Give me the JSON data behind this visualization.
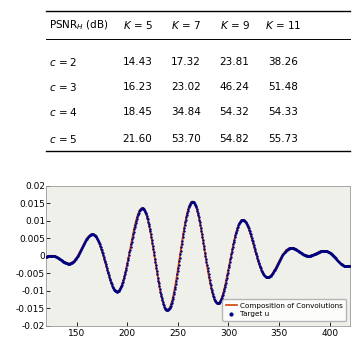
{
  "table_title": "PSNR$_{H}$ (dB)",
  "col_headers": [
    "K = 5",
    "K = 7",
    "K = 9",
    "K = 11"
  ],
  "row_headers": [
    "c = 2",
    "c = 3",
    "c = 4",
    "c = 5"
  ],
  "table_data": [
    [
      14.43,
      17.32,
      23.81,
      38.26
    ],
    [
      16.23,
      23.02,
      46.24,
      51.48
    ],
    [
      18.45,
      34.84,
      54.32,
      54.33
    ],
    [
      21.6,
      53.7,
      54.82,
      55.73
    ]
  ],
  "plot_xlim": [
    120,
    420
  ],
  "plot_ylim": [
    -0.02,
    0.02
  ],
  "plot_yticks": [
    -0.02,
    -0.015,
    -0.01,
    -0.005,
    0,
    0.005,
    0.01,
    0.015,
    0.02
  ],
  "plot_xticks": [
    150,
    200,
    250,
    300,
    350,
    400
  ],
  "line_color": "#cc4400",
  "dot_color": "#000080",
  "legend_labels": [
    "Composition of Convolutions",
    "Target u"
  ],
  "background_color": "#f0f0eb"
}
